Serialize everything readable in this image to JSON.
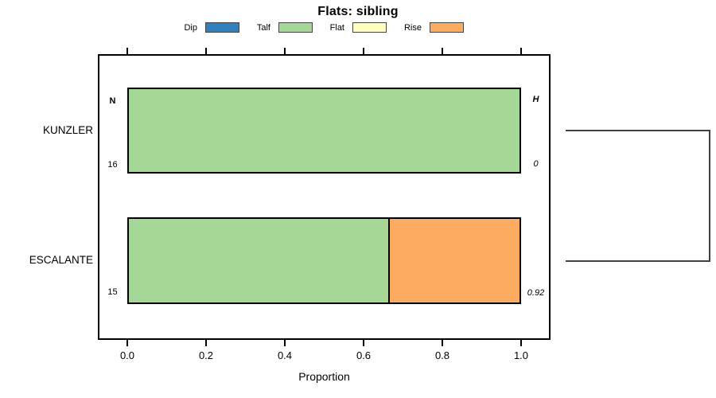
{
  "chart_data": {
    "type": "bar",
    "orientation": "horizontal",
    "stacked": true,
    "title": "Flats: sibling",
    "xlabel": "Proportion",
    "xlim": [
      0,
      1
    ],
    "xticks": [
      {
        "v": 0.0,
        "label": "0.0"
      },
      {
        "v": 0.2,
        "label": "0.2"
      },
      {
        "v": 0.4,
        "label": "0.4"
      },
      {
        "v": 0.6,
        "label": "0.6"
      },
      {
        "v": 0.8,
        "label": "0.8"
      },
      {
        "v": 1.0,
        "label": "1.0"
      }
    ],
    "legend": [
      {
        "label": "Dip",
        "color": "#2F81BD"
      },
      {
        "label": "Talf",
        "color": "#A5D796"
      },
      {
        "label": "Flat",
        "color": "#FFFFBF"
      },
      {
        "label": "Rise",
        "color": "#FBAC60"
      }
    ],
    "annotations": {
      "left_header": "N",
      "right_header": "H"
    },
    "rows": [
      {
        "category": "KUNZLER",
        "n": 16,
        "h": "0",
        "segments": [
          {
            "name": "Talf",
            "value": 1.0
          }
        ]
      },
      {
        "category": "ESCALANTE",
        "n": 15,
        "h": "0.92",
        "segments": [
          {
            "name": "Talf",
            "value": 0.667
          },
          {
            "name": "Rise",
            "value": 0.333
          }
        ]
      }
    ],
    "dendrogram": {
      "merge_height": 0.92,
      "line_color": "#404040"
    },
    "colors": {
      "plot_border": "#000000",
      "bar_border": "#000000"
    }
  }
}
